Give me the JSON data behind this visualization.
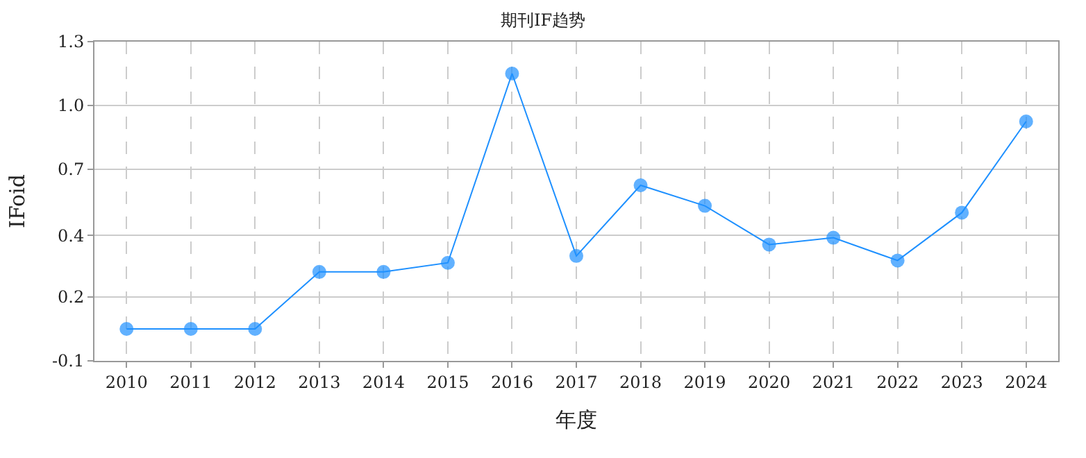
{
  "chart_data": {
    "type": "line",
    "title": "期刊IF趋势",
    "xlabel": "年度",
    "ylabel": "IFoid",
    "categories": [
      "2010",
      "2011",
      "2012",
      "2013",
      "2014",
      "2015",
      "2016",
      "2017",
      "2018",
      "2019",
      "2020",
      "2021",
      "2022",
      "2023",
      "2024"
    ],
    "series": [
      {
        "color": "#1e90ff",
        "values": [
          0.04,
          0.04,
          0.04,
          0.29,
          0.29,
          0.33,
          1.16,
          0.36,
          0.67,
          0.58,
          0.41,
          0.44,
          0.34,
          0.55,
          0.95
        ]
      }
    ],
    "ylim": [
      -0.1,
      1.3
    ],
    "yticks": [
      -0.1,
      {
        "value": 0.18,
        "label": "0.2"
      },
      {
        "value": 0.45,
        "label": "0.4"
      },
      {
        "value": 0.74,
        "label": "0.7"
      },
      {
        "value": 1.02,
        "label": "1.0"
      },
      1.3
    ],
    "grid": true,
    "marker": "circle",
    "line_style": "solid"
  }
}
